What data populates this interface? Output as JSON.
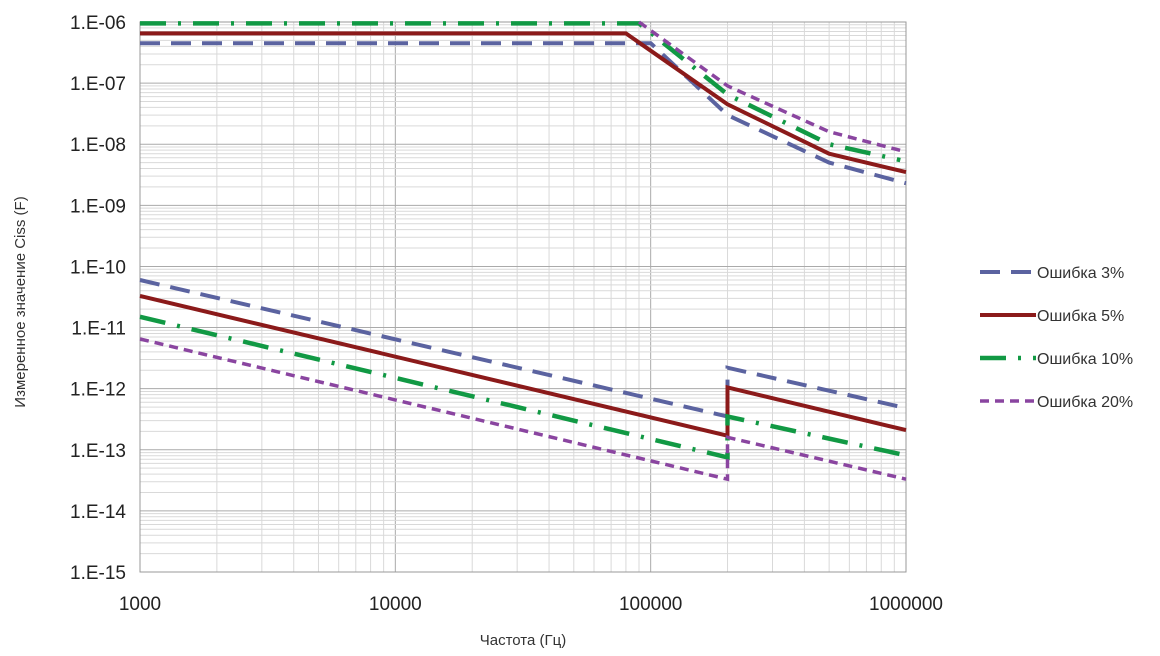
{
  "chart_data": {
    "type": "line",
    "title": "",
    "xlabel": "Частота (Гц)",
    "ylabel": "Измеренное значение Ciss (F)",
    "x_scale": "log",
    "y_scale": "log",
    "xlim": [
      1000,
      1000000
    ],
    "ylim": [
      1e-15,
      1e-06
    ],
    "x_ticks": [
      1000,
      10000,
      100000,
      1000000
    ],
    "x_tick_labels": [
      "1000",
      "10000",
      "100000",
      "1000000"
    ],
    "y_ticks": [
      1e-06,
      1e-07,
      1e-08,
      1e-09,
      1e-10,
      1e-11,
      1e-12,
      1e-13,
      1e-14,
      1e-15
    ],
    "y_tick_labels": [
      "1.E-06",
      "1.E-07",
      "1.E-08",
      "1.E-09",
      "1.E-10",
      "1.E-11",
      "1.E-12",
      "1.E-13",
      "1.E-14",
      "1.E-15"
    ],
    "grid": true,
    "legend_position": "right",
    "series": [
      {
        "name": "Ошибка 3%",
        "color": "#5b63a0",
        "dash": "dashed",
        "segments": [
          [
            [
              1000,
              4.5e-07
            ],
            [
              100000,
              4.5e-07
            ],
            [
              200000,
              3e-08
            ],
            [
              500000,
              5e-09
            ],
            [
              1000000,
              2.3e-09
            ]
          ],
          [
            [
              1000,
              6e-11
            ],
            [
              200000,
              3.5e-13
            ],
            [
              200000,
              2.2e-12
            ],
            [
              1000000,
              4.8e-13
            ]
          ]
        ]
      },
      {
        "name": "Ошибка 5%",
        "color": "#8b1a1a",
        "dash": "solid",
        "segments": [
          [
            [
              1000,
              6.5e-07
            ],
            [
              80000,
              6.5e-07
            ],
            [
              200000,
              4.5e-08
            ],
            [
              500000,
              7e-09
            ],
            [
              1000000,
              3.5e-09
            ]
          ],
          [
            [
              1000,
              3.3e-11
            ],
            [
              200000,
              1.7e-13
            ],
            [
              200000,
              1.05e-12
            ],
            [
              1000000,
              2.1e-13
            ]
          ]
        ]
      },
      {
        "name": "Ошибка 10%",
        "color": "#119944",
        "dash": "dash-dot",
        "segments": [
          [
            [
              1000,
              9.5e-07
            ],
            [
              90000,
              9.5e-07
            ],
            [
              200000,
              6.5e-08
            ],
            [
              500000,
              1e-08
            ],
            [
              950000,
              5.5e-09
            ]
          ],
          [
            [
              1000,
              1.5e-11
            ],
            [
              200000,
              7.5e-14
            ],
            [
              200000,
              3.5e-13
            ],
            [
              950000,
              8.5e-14
            ]
          ]
        ]
      },
      {
        "name": "Ошибка 20%",
        "color": "#8a45a0",
        "dash": "short-dash",
        "segments": [
          [
            [
              90000,
              1e-06
            ],
            [
              200000,
              9e-08
            ],
            [
              500000,
              1.6e-08
            ],
            [
              1000000,
              7.5e-09
            ]
          ],
          [
            [
              1000,
              6.5e-12
            ],
            [
              200000,
              3.3e-14
            ],
            [
              200000,
              1.6e-13
            ],
            [
              1000000,
              3.3e-14
            ]
          ]
        ]
      }
    ]
  }
}
